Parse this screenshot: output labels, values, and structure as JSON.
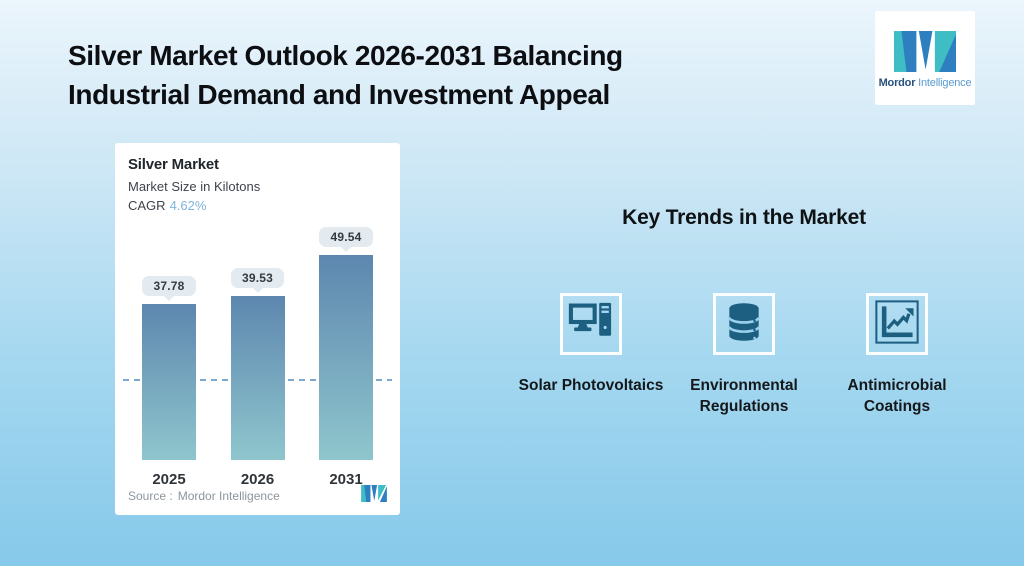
{
  "header": {
    "title_line1": "Silver Market Outlook 2026-2031 Balancing",
    "title_line2": "Industrial Demand and Investment Appeal"
  },
  "brand": {
    "name_bold": "Mordor",
    "name_light": "Intelligence"
  },
  "chart_card": {
    "title": "Silver Market",
    "subtitle": "Market Size in Kilotons",
    "cagr_label": "CAGR",
    "cagr_value": "4.62%",
    "source_label": "Source :",
    "source_value": "Mordor Intelligence"
  },
  "chart_data": {
    "type": "bar",
    "title": "Silver Market",
    "ylabel": "Market Size in Kilotons",
    "cagr_pct": 4.62,
    "categories": [
      "2025",
      "2026",
      "2031"
    ],
    "values": [
      37.78,
      39.53,
      49.54
    ],
    "ylim": [
      0,
      55
    ],
    "baseline_reference": 37.78,
    "grid": "off",
    "legend": "none",
    "bar_gradient_top": "#5d87af",
    "bar_gradient_bottom": "#8fc6cd",
    "dashed_line_color": "#7ba9cf"
  },
  "key_trends": {
    "heading": "Key Trends in the Market",
    "items": [
      {
        "label": "Solar Photovoltaics",
        "icon": "desktop-computer-icon"
      },
      {
        "label": "Environmental Regulations",
        "icon": "database-icon"
      },
      {
        "label": "Antimicrobial Coatings",
        "icon": "line-chart-icon"
      }
    ]
  },
  "colors": {
    "trend_icon": "#1d5f80",
    "cagr_value": "#80b6dc",
    "pill_bg": "#e3ebf0",
    "brand_teal": "#3fbdc4",
    "brand_blue": "#2e7fc0",
    "background_top": "#ebf5fc",
    "background_bottom": "#86c9ea"
  }
}
